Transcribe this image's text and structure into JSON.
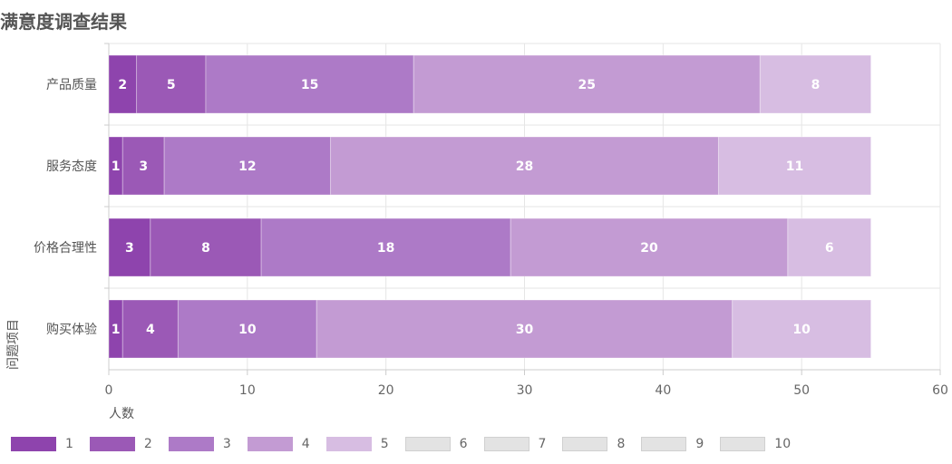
{
  "chart_data": {
    "type": "bar",
    "orientation": "horizontal",
    "stacked": true,
    "title": "满意度调查结果",
    "xlabel": "人数",
    "ylabel": "问题项目",
    "xlim": [
      0,
      60
    ],
    "x_ticks": [
      0,
      10,
      20,
      30,
      40,
      50,
      60
    ],
    "grid": true,
    "legend_position": "bottom-left",
    "categories": [
      "产品质量",
      "服务态度",
      "价格合理性",
      "购买体验"
    ],
    "series": [
      {
        "name": "1",
        "color": "#8e44ad",
        "values": [
          2,
          1,
          3,
          1
        ]
      },
      {
        "name": "2",
        "color": "#9b59b6",
        "values": [
          5,
          3,
          8,
          4
        ]
      },
      {
        "name": "3",
        "color": "#ad7ac7",
        "values": [
          15,
          12,
          18,
          10
        ]
      },
      {
        "name": "4",
        "color": "#c39bd3",
        "values": [
          25,
          28,
          20,
          30
        ]
      },
      {
        "name": "5",
        "color": "#d7bde2",
        "values": [
          8,
          11,
          6,
          10
        ]
      },
      {
        "name": "6",
        "color": "#e3e3e3",
        "values": [
          0,
          0,
          0,
          0
        ]
      },
      {
        "name": "7",
        "color": "#e3e3e3",
        "values": [
          0,
          0,
          0,
          0
        ]
      },
      {
        "name": "8",
        "color": "#e3e3e3",
        "values": [
          0,
          0,
          0,
          0
        ]
      },
      {
        "name": "9",
        "color": "#e3e3e3",
        "values": [
          0,
          0,
          0,
          0
        ]
      },
      {
        "name": "10",
        "color": "#e3e3e3",
        "values": [
          0,
          0,
          0,
          0
        ]
      }
    ]
  }
}
